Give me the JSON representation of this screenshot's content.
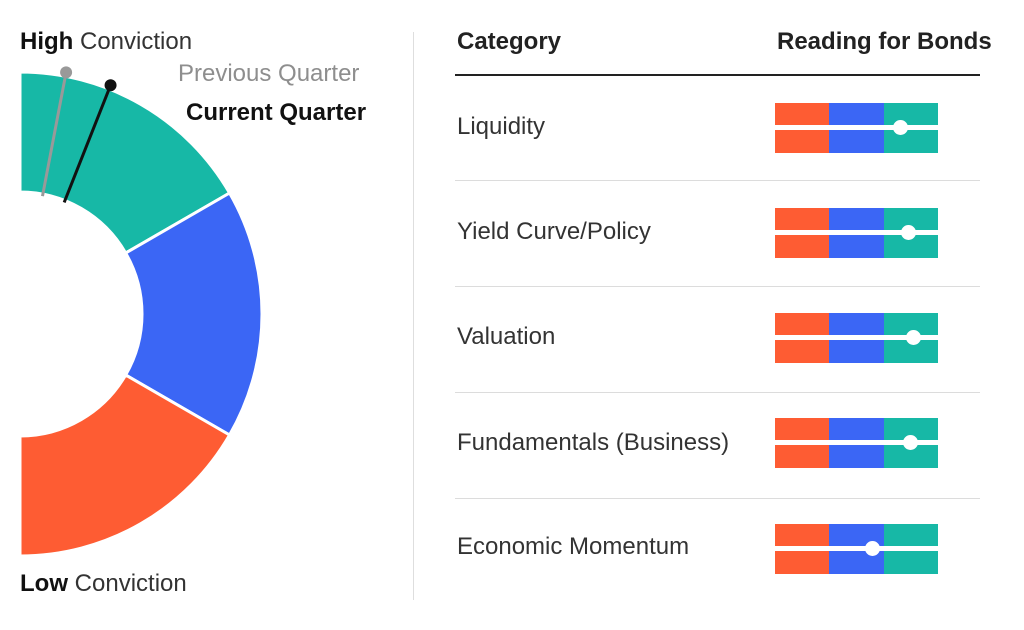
{
  "legend": {
    "high_bold": "High",
    "high_rest": "Conviction",
    "low_bold": "Low",
    "low_rest": "Conviction",
    "previous_quarter": "Previous Quarter",
    "current_quarter": "Current Quarter"
  },
  "headers": {
    "category": "Category",
    "reading": "Reading for Bonds"
  },
  "colors": {
    "low": "#fe5c33",
    "mid": "#3b66f5",
    "high": "#17b8a6",
    "previous_pointer": "#999999",
    "current_pointer": "#111111"
  },
  "chart_data": [
    {
      "type": "gauge",
      "bands": [
        "low",
        "mid",
        "high"
      ],
      "scale": [
        0,
        1
      ],
      "previous_quarter": 0.94,
      "current_quarter": 0.88
    },
    {
      "type": "table",
      "columns": [
        "Category",
        "Reading for Bonds"
      ],
      "scale": [
        0,
        1
      ],
      "rows": [
        {
          "category": "Liquidity",
          "reading": 0.77
        },
        {
          "category": "Yield Curve/Policy",
          "reading": 0.82
        },
        {
          "category": "Valuation",
          "reading": 0.85
        },
        {
          "category": "Fundamentals (Business)",
          "reading": 0.83
        },
        {
          "category": "Economic Momentum",
          "reading": 0.6
        }
      ]
    }
  ]
}
